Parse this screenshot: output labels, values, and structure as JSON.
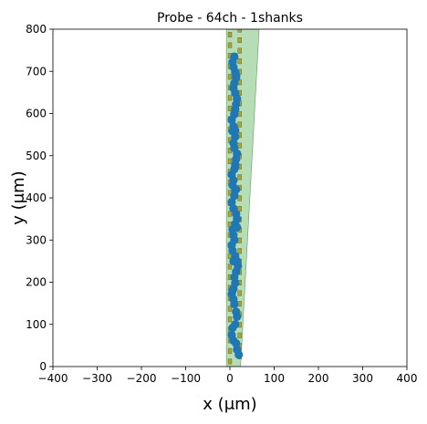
{
  "chart_data": {
    "type": "scatter",
    "title": "Probe - 64ch - 1shanks",
    "xlabel": "x (μm)",
    "ylabel": "y (μm)",
    "xlim": [
      -400,
      400
    ],
    "ylim": [
      0,
      800
    ],
    "xticks": [
      "−400",
      "−300",
      "−200",
      "−100",
      "0",
      "100",
      "200",
      "300",
      "400"
    ],
    "yticks": [
      "0",
      "100",
      "200",
      "300",
      "400",
      "500",
      "600",
      "700",
      "800"
    ],
    "grid": false,
    "shank_outline": {
      "points": [
        [
          -8,
          0
        ],
        [
          24,
          0
        ],
        [
          66,
          800
        ],
        [
          -8,
          800
        ]
      ],
      "color": "#b3dbb3"
    },
    "contacts": {
      "color": "#a5a63a",
      "size_um": [
        8,
        12
      ],
      "columns": [
        {
          "x": 0,
          "y": [
            12,
            37,
            62,
            87,
            112,
            137,
            162,
            187,
            212,
            237,
            262,
            287,
            312,
            337,
            362,
            387,
            412,
            437,
            462,
            487,
            512,
            537,
            562,
            587,
            612,
            637,
            662,
            687,
            712,
            737,
            762,
            787
          ]
        },
        {
          "x": 22,
          "y": [
            24,
            49,
            74,
            99,
            124,
            149,
            174,
            199,
            224,
            249,
            274,
            299,
            324,
            349,
            374,
            399,
            424,
            449,
            474,
            499,
            524,
            549,
            574,
            599,
            624,
            649,
            674,
            699,
            724,
            749,
            774,
            799
          ]
        }
      ]
    },
    "points": {
      "color": "#1f77b4",
      "x": [
        20,
        16,
        14,
        8,
        4,
        6,
        12,
        16,
        14,
        10,
        8,
        4,
        8,
        12,
        10,
        14,
        18,
        16,
        12,
        6,
        4,
        10,
        8,
        6,
        12,
        16,
        14,
        8,
        4,
        10,
        12,
        6,
        8,
        4,
        10,
        12,
        14,
        16,
        10,
        8,
        12,
        6,
        8,
        4,
        10,
        12,
        14,
        16,
        12,
        8,
        10,
        14,
        12,
        8,
        6,
        10,
        16,
        14,
        12,
        10,
        8,
        6,
        12,
        14
      ],
      "y": [
        28,
        40,
        55,
        62,
        75,
        92,
        100,
        118,
        130,
        148,
        160,
        172,
        185,
        198,
        212,
        225,
        238,
        250,
        262,
        275,
        288,
        300,
        312,
        325,
        338,
        350,
        362,
        375,
        390,
        405,
        418,
        430,
        442,
        455,
        468,
        480,
        492,
        505,
        518,
        530,
        545,
        558,
        570,
        585,
        598,
        610,
        622,
        635,
        648,
        660,
        672,
        685,
        698,
        710,
        722,
        735,
        330,
        420,
        560,
        600,
        250,
        180,
        475,
        690
      ]
    }
  }
}
